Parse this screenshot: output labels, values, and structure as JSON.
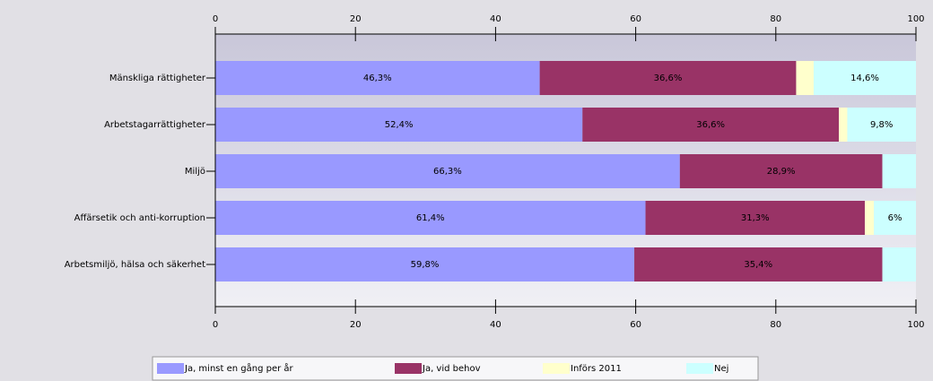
{
  "chart_data": {
    "type": "stacked-barh",
    "categories": [
      "Mänskliga rättigheter",
      "Arbetstagarrättigheter",
      "Miljö",
      "Affärsetik och anti-korruption",
      "Arbetsmiljö, hälsa och säkerhet"
    ],
    "series": [
      {
        "name": "Ja, minst en gång per år",
        "color": "#9999ff",
        "values": [
          46.3,
          52.4,
          66.3,
          61.4,
          59.8
        ],
        "value_labels": [
          "46,3%",
          "52,4%",
          "66,3%",
          "61,4%",
          "59,8%"
        ]
      },
      {
        "name": "Ja, vid behov",
        "color": "#993366",
        "values": [
          36.6,
          36.6,
          28.9,
          31.3,
          35.4
        ],
        "value_labels": [
          "36,6%",
          "36,6%",
          "28,9%",
          "31,3%",
          "35,4%"
        ]
      },
      {
        "name": "Införs 2011",
        "color": "#ffffcc",
        "values": [
          2.5,
          1.2,
          0,
          1.3,
          0
        ],
        "value_labels": [
          null,
          null,
          null,
          null,
          null
        ]
      },
      {
        "name": "Nej",
        "color": "#ccffff",
        "values": [
          14.6,
          9.8,
          4.8,
          6,
          4.8
        ],
        "value_labels": [
          "14,6%",
          "9,8%",
          null,
          "6%",
          null
        ]
      }
    ],
    "xlim": [
      0,
      100
    ],
    "xticks": [
      0,
      20,
      40,
      60,
      80,
      100
    ]
  }
}
